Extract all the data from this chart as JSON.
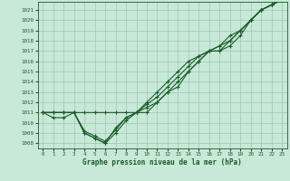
{
  "title": "Graphe pression niveau de la mer (hPa)",
  "background_color": "#c8e8d8",
  "grid_color": "#9ec8b0",
  "line_color": "#1a5c2a",
  "xlim": [
    -0.5,
    23.5
  ],
  "ylim": [
    1007.5,
    1021.8
  ],
  "xticks": [
    0,
    1,
    2,
    3,
    4,
    5,
    6,
    7,
    8,
    9,
    10,
    11,
    12,
    13,
    14,
    15,
    16,
    17,
    18,
    19,
    20,
    21,
    22,
    23
  ],
  "yticks": [
    1008,
    1009,
    1010,
    1011,
    1012,
    1013,
    1014,
    1015,
    1016,
    1017,
    1018,
    1019,
    1020,
    1021
  ],
  "series": [
    [
      1011,
      1011,
      1011,
      1011,
      1011,
      1011,
      1011,
      1011,
      1011,
      1011,
      1011,
      1012,
      1013,
      1014,
      1015,
      1016,
      1017,
      1017,
      1018,
      1019,
      1020,
      1021,
      1021.5,
      1022
    ],
    [
      1011,
      1011,
      1011,
      1011,
      1009,
      1008.5,
      1008,
      1009,
      1010.2,
      1011,
      1011.5,
      1012,
      1013,
      1013.5,
      1015,
      1016,
      1017,
      1017,
      1017.5,
      1018.5,
      1020,
      1021,
      1021.5,
      1022
    ],
    [
      1011,
      1010.5,
      1010.5,
      1011,
      1009.2,
      1008.7,
      1008.2,
      1009.3,
      1010.5,
      1011,
      1011.8,
      1012.5,
      1013.5,
      1014.5,
      1015.5,
      1016.5,
      1017,
      1017.5,
      1018,
      1019,
      1020,
      1021,
      1021.5,
      1022
    ],
    [
      1011,
      1011,
      1011,
      1011,
      1009,
      1008.5,
      1008,
      1009.5,
      1010.5,
      1011,
      1012,
      1013,
      1014,
      1015,
      1016,
      1016.5,
      1017,
      1017.5,
      1018.5,
      1019,
      1020,
      1021,
      1021.5,
      1022
    ]
  ],
  "figsize": [
    3.2,
    2.0
  ],
  "dpi": 100
}
